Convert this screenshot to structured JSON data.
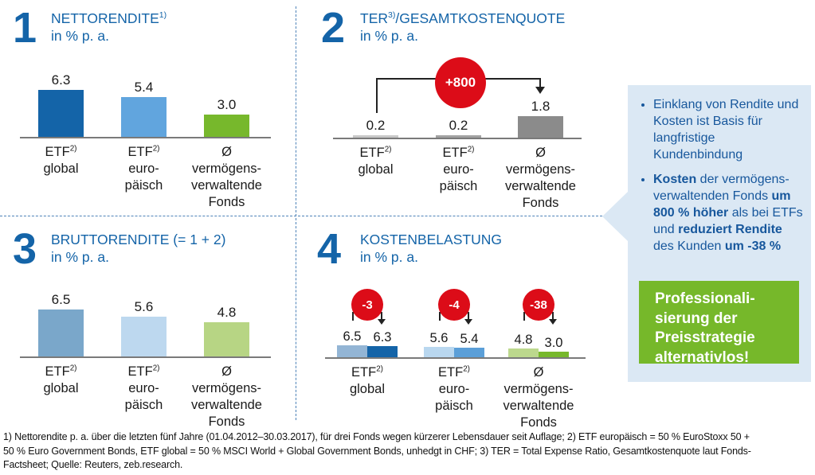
{
  "colors": {
    "brand_blue": "#1464a8",
    "accent_red": "#dc0c18",
    "accent_green": "#76b82a",
    "panel_bg": "#dbe8f4",
    "divider_blue": "#4d82b8",
    "axis_gray": "#7a7a7a"
  },
  "chart_data": [
    {
      "id": "nettorendite",
      "type": "bar",
      "number": "1",
      "title": {
        "t": "NETTORENDITE",
        "sup": "1)",
        "after": ""
      },
      "subtitle": "in % p. a.",
      "values": [
        6.3,
        5.4,
        3.0
      ],
      "bar_colors": [
        "#1464a8",
        "#61a5de",
        "#77b82c"
      ],
      "categories": [
        {
          "lines": [
            {
              "t": "ETF",
              "sup": "2)"
            },
            {
              "t": "global"
            }
          ]
        },
        {
          "lines": [
            {
              "t": "ETF",
              "sup": "2)"
            },
            {
              "t": "euro-"
            },
            {
              "t": "päisch"
            }
          ]
        },
        {
          "lines": [
            {
              "t": "Ø"
            },
            {
              "t": "vermögens-"
            },
            {
              "t": "verwaltende"
            },
            {
              "t": "Fonds"
            }
          ]
        }
      ],
      "ylim": [
        0,
        7
      ],
      "grid": false,
      "legend": false
    },
    {
      "id": "ter-gesamtkostenquote",
      "type": "bar",
      "number": "2",
      "title": {
        "t": "TER",
        "sup": "3)",
        "after": "/GESAMTKOSTENQUOTE"
      },
      "subtitle": "in % p. a.",
      "values": [
        0.2,
        0.2,
        1.8
      ],
      "bar_colors": [
        "#c8c8c8",
        "#a2a2a2",
        "#8b8b8b"
      ],
      "categories": [
        {
          "lines": [
            {
              "t": "ETF",
              "sup": "2)"
            },
            {
              "t": "global"
            }
          ]
        },
        {
          "lines": [
            {
              "t": "ETF",
              "sup": "2)"
            },
            {
              "t": "euro-"
            },
            {
              "t": "päisch"
            }
          ]
        },
        {
          "lines": [
            {
              "t": "Ø"
            },
            {
              "t": "vermögens-"
            },
            {
              "t": "verwaltende"
            },
            {
              "t": "Fonds"
            }
          ]
        }
      ],
      "annotation": {
        "label": "+800",
        "from_bar": 0,
        "to_bar": 2
      },
      "ylim": [
        0,
        2
      ],
      "grid": false,
      "legend": false
    },
    {
      "id": "bruttorendite",
      "type": "bar",
      "number": "3",
      "title": {
        "t": "BRUTTORENDITE (= 1 + 2)",
        "sup": "",
        "after": ""
      },
      "subtitle": "in % p. a.",
      "values": [
        6.5,
        5.6,
        4.8
      ],
      "bar_colors": [
        "#7aa7ca",
        "#bdd8ef",
        "#b7d584"
      ],
      "categories": [
        {
          "lines": [
            {
              "t": "ETF",
              "sup": "2)"
            },
            {
              "t": "global"
            }
          ]
        },
        {
          "lines": [
            {
              "t": "ETF",
              "sup": "2)"
            },
            {
              "t": "euro-"
            },
            {
              "t": "päisch"
            }
          ]
        },
        {
          "lines": [
            {
              "t": "Ø"
            },
            {
              "t": "vermögens-"
            },
            {
              "t": "verwaltende"
            },
            {
              "t": "Fonds"
            }
          ]
        }
      ],
      "ylim": [
        0,
        7
      ],
      "grid": false,
      "legend": false
    },
    {
      "id": "kostenbelastung",
      "type": "grouped-bar",
      "number": "4",
      "title": {
        "t": "KOSTENBELASTUNG",
        "sup": "",
        "after": ""
      },
      "subtitle": "in % p. a.",
      "pairs": [
        {
          "values": [
            6.5,
            6.3
          ],
          "colors": [
            "#93b5d5",
            "#1464a8"
          ],
          "annotation": "-3"
        },
        {
          "values": [
            5.6,
            5.4
          ],
          "colors": [
            "#b9d7ef",
            "#5b9fd8"
          ],
          "annotation": "-4"
        },
        {
          "values": [
            4.8,
            3.0
          ],
          "colors": [
            "#bcd88d",
            "#77b82c"
          ],
          "annotation": "-38"
        }
      ],
      "categories": [
        {
          "lines": [
            {
              "t": "ETF",
              "sup": "2)"
            },
            {
              "t": "global"
            }
          ]
        },
        {
          "lines": [
            {
              "t": "ETF",
              "sup": "2)"
            },
            {
              "t": "euro-"
            },
            {
              "t": "päisch"
            }
          ]
        },
        {
          "lines": [
            {
              "t": "Ø"
            },
            {
              "t": "vermögens-"
            },
            {
              "t": "verwaltende"
            },
            {
              "t": "Fonds"
            }
          ]
        }
      ],
      "ylim": [
        0,
        7
      ],
      "grid": false,
      "legend": false
    }
  ],
  "sidebar": {
    "bullets": [
      {
        "runs": [
          {
            "t": "Einklang von Rendite und Kosten ist Basis für langfristige Kundenbindung",
            "b": false
          }
        ]
      },
      {
        "runs": [
          {
            "t": "Kosten",
            "b": true
          },
          {
            "t": " der vermögens-verwaltenden Fonds ",
            "b": false
          },
          {
            "t": "um 800 % höher",
            "b": true
          },
          {
            "t": " als bei ETFs und ",
            "b": false
          },
          {
            "t": "reduziert Rendite",
            "b": true
          },
          {
            "t": " des Kunden ",
            "b": false
          },
          {
            "t": "um -38 %",
            "b": true
          }
        ]
      }
    ],
    "cta_lines": [
      "Professionali-",
      "sierung der",
      "Preisstrategie",
      "alternativlos!"
    ]
  },
  "footnote_lines": [
    "1) Nettorendite p. a. über die letzten fünf Jahre (01.04.2012–30.03.2017), für drei Fonds wegen kürzerer Lebensdauer seit Auflage; 2) ETF europäisch = 50 % EuroStoxx 50 +",
    "50 % Euro Government Bonds, ETF global = 50 % MSCI World + Global Government Bonds, unhedgt in CHF; 3) TER = Total Expense Ratio, Gesamtkostenquote laut Fonds-",
    "Factsheet; Quelle: Reuters, zeb.research."
  ]
}
